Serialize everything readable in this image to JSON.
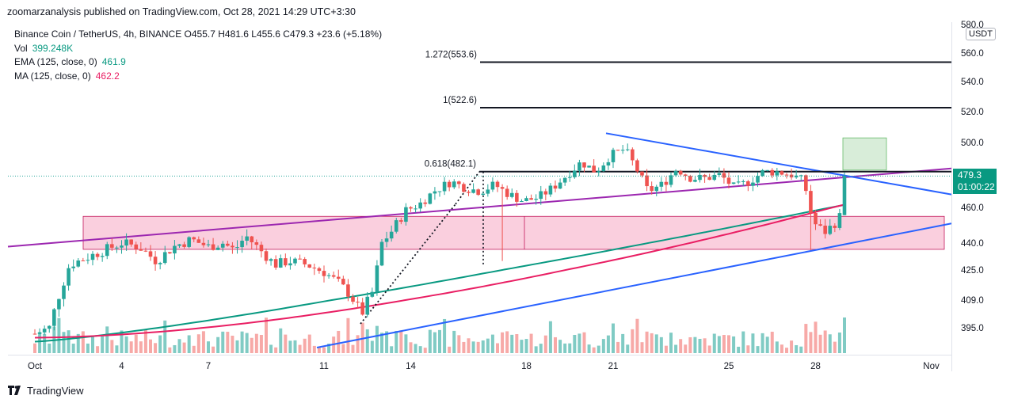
{
  "header": {
    "published": "zoomarzanalysis published on TradingView.com, Oct 28, 2021 14:29 UTC+3:30"
  },
  "legend": {
    "symbol_line": "Binance Coin / TetherUS, 4h, BINANCE  O455.7  H481.6  L455.6  C479.3  +23.6 (+5.18%)",
    "vol_label": "Vol",
    "vol_value": "399.248K",
    "ema_label": "EMA (125, close, 0)",
    "ema_value": "461.9",
    "ma_label": "MA (125, close, 0)",
    "ma_value": "462.2"
  },
  "price_axis": {
    "currency": "USDT",
    "last_price": "479.3",
    "countdown": "01:00:22"
  },
  "footer": {
    "brand": "TradingView"
  },
  "colors": {
    "up": "#26a69a",
    "down": "#ef5350",
    "ema": "#089981",
    "ma": "#e91e63",
    "trend_purple": "#9c27b0",
    "trend_blue": "#2962ff",
    "zone": "#f8bbd0"
  },
  "chart_data": {
    "type": "candlestick",
    "title": "Binance Coin / TetherUS, 4h, BINANCE",
    "x_tick_labels": [
      "Oct",
      "4",
      "7",
      "11",
      "14",
      "18",
      "21",
      "25",
      "28",
      "Nov"
    ],
    "y_tick_labels": [
      "580.0",
      "560.0",
      "540.0",
      "520.0",
      "500.0",
      "480.0",
      "460.0",
      "440.0",
      "425.0",
      "409.0",
      "395.0"
    ],
    "y_scale": "log",
    "ylim": [
      385,
      580
    ],
    "fib_levels": [
      {
        "label": "1.272(553.6)",
        "value": 553.6
      },
      {
        "label": "1(522.6)",
        "value": 522.6
      },
      {
        "label": "0.618(482.1)",
        "value": 482.1
      }
    ],
    "last_price": 479.3,
    "zone": {
      "low": 436.5,
      "high": 455
    },
    "series": [
      {
        "name": "EMA (125, close, 0)",
        "last": 461.9
      },
      {
        "name": "MA (125, close, 0)",
        "last": 462.2
      }
    ]
  }
}
